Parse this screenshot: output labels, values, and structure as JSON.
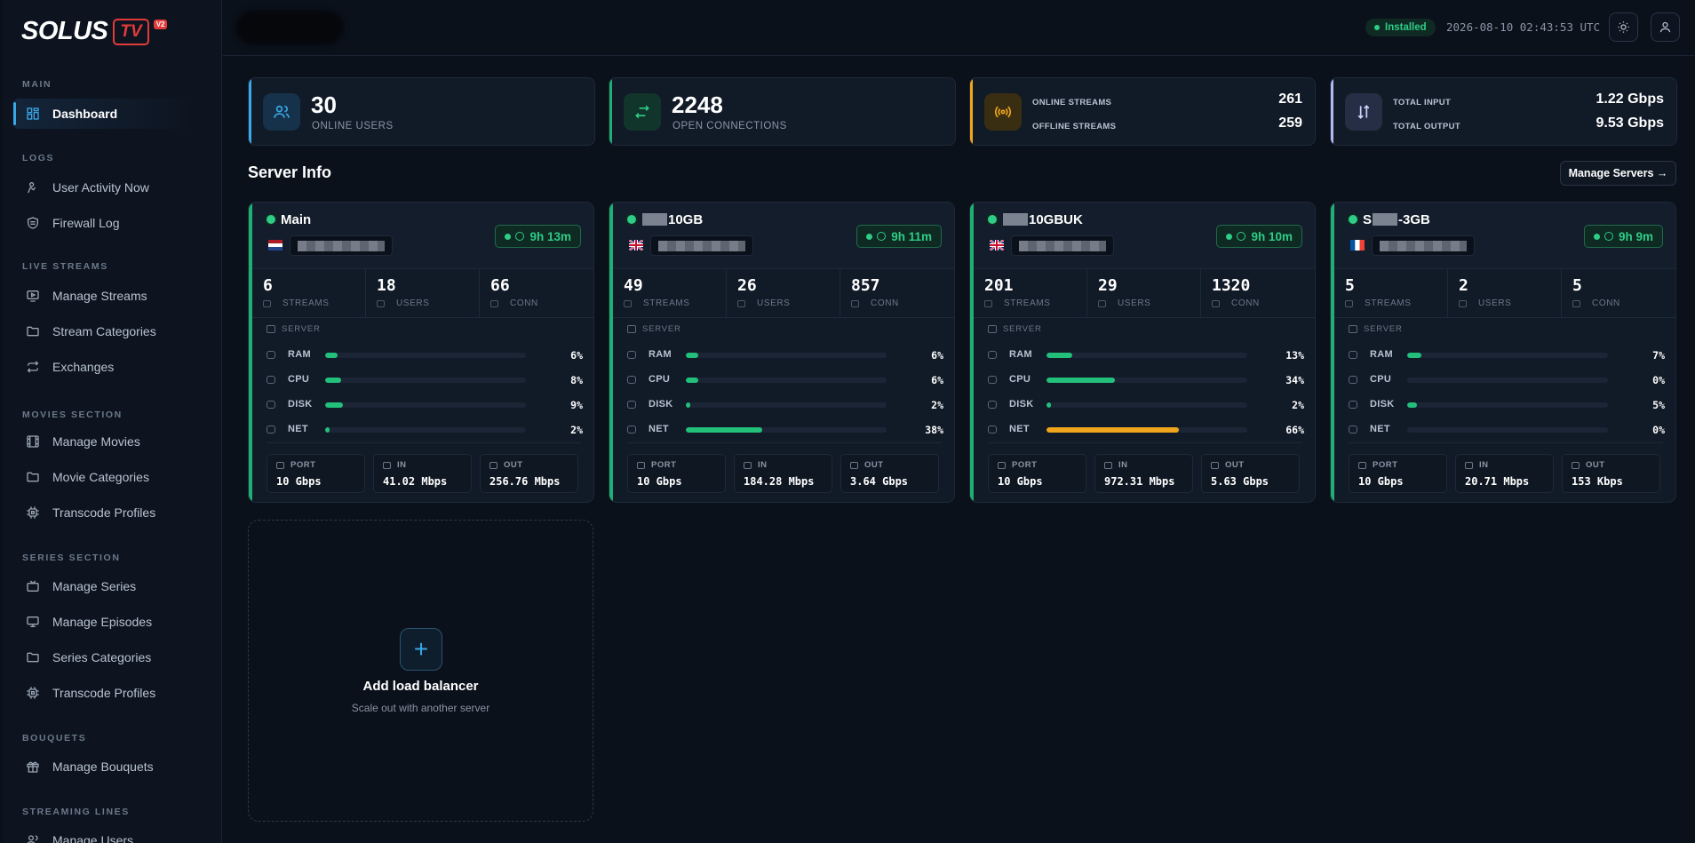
{
  "brand": {
    "name": "SOLUS",
    "tv": "TV",
    "version": "V2"
  },
  "colors": {
    "accent": "#3aa7e8",
    "success": "#2ecc87",
    "warning": "#f0a61c",
    "brand": "#e23b3b"
  },
  "sidebar": {
    "sections": [
      {
        "title": "MAIN",
        "items": [
          {
            "label": "Dashboard",
            "icon": "dashboard-icon",
            "active": true
          }
        ]
      },
      {
        "title": "LOGS",
        "items": [
          {
            "label": "User Activity Now",
            "icon": "user-activity-icon"
          },
          {
            "label": "Firewall Log",
            "icon": "shield-icon"
          }
        ]
      },
      {
        "title": "LIVE STREAMS",
        "items": [
          {
            "label": "Manage Streams",
            "icon": "play-screen-icon"
          },
          {
            "label": "Stream Categories",
            "icon": "folder-icon"
          },
          {
            "label": "Exchanges",
            "icon": "exchange-icon"
          }
        ]
      },
      {
        "title": "MOVIES SECTION",
        "items": [
          {
            "label": "Manage Movies",
            "icon": "film-icon"
          },
          {
            "label": "Movie Categories",
            "icon": "folder-icon"
          },
          {
            "label": "Transcode Profiles",
            "icon": "cpu-icon"
          }
        ]
      },
      {
        "title": "SERIES SECTION",
        "items": [
          {
            "label": "Manage Series",
            "icon": "tv-icon"
          },
          {
            "label": "Manage Episodes",
            "icon": "monitor-icon"
          },
          {
            "label": "Series Categories",
            "icon": "folder-icon"
          },
          {
            "label": "Transcode Profiles",
            "icon": "cpu-icon"
          }
        ]
      },
      {
        "title": "BOUQUETS",
        "items": [
          {
            "label": "Manage Bouquets",
            "icon": "gift-icon"
          }
        ]
      },
      {
        "title": "STREAMING LINES",
        "items": [
          {
            "label": "Manage Users",
            "icon": "users-icon"
          }
        ]
      }
    ]
  },
  "topbar": {
    "status": "Installed",
    "datetime": "2026-08-10 02:43:53 UTC",
    "theme_icon": "sun-icon",
    "user_icon": "user-icon"
  },
  "stats": {
    "online_users": {
      "value": "30",
      "label": "ONLINE USERS"
    },
    "open_connections": {
      "value": "2248",
      "label": "OPEN CONNECTIONS"
    },
    "streams": {
      "online_label": "ONLINE STREAMS",
      "online_value": "261",
      "offline_label": "OFFLINE STREAMS",
      "offline_value": "259"
    },
    "bandwidth": {
      "input_label": "TOTAL INPUT",
      "input_value": "1.22 Gbps",
      "output_label": "TOTAL OUTPUT",
      "output_value": "9.53 Gbps"
    }
  },
  "server_info": {
    "title": "Server Info",
    "manage_label": "Manage Servers →"
  },
  "labels": {
    "streams": "STREAMS",
    "users": "USERS",
    "conn": "CONN",
    "server": "SERVER",
    "ram": "RAM",
    "cpu": "CPU",
    "disk": "DISK",
    "net": "NET",
    "port": "PORT",
    "in": "IN",
    "out": "OUT"
  },
  "servers": [
    {
      "name_pre": "",
      "name_post": "Main",
      "masked": false,
      "flag": "nl",
      "uptime": "9h 13m",
      "streams": "6",
      "users": "18",
      "conn": "66",
      "ram": 6,
      "cpu": 8,
      "disk": 9,
      "net": 2,
      "ram_t": "6%",
      "cpu_t": "8%",
      "disk_t": "9%",
      "net_t": "2%",
      "port": "10 Gbps",
      "in": "41.02 Mbps",
      "out": "256.76 Mbps"
    },
    {
      "name_pre": "",
      "name_post": "10GB",
      "masked": true,
      "flag": "uk",
      "uptime": "9h 11m",
      "streams": "49",
      "users": "26",
      "conn": "857",
      "ram": 6,
      "cpu": 6,
      "disk": 2,
      "net": 38,
      "ram_t": "6%",
      "cpu_t": "6%",
      "disk_t": "2%",
      "net_t": "38%",
      "port": "10 Gbps",
      "in": "184.28 Mbps",
      "out": "3.64 Gbps"
    },
    {
      "name_pre": "",
      "name_post": "10GBUK",
      "masked": true,
      "flag": "uk",
      "uptime": "9h 10m",
      "streams": "201",
      "users": "29",
      "conn": "1320",
      "ram": 13,
      "cpu": 34,
      "disk": 2,
      "net": 66,
      "ram_t": "13%",
      "cpu_t": "34%",
      "disk_t": "2%",
      "net_t": "66%",
      "port": "10 Gbps",
      "in": "972.31 Mbps",
      "out": "5.63 Gbps"
    },
    {
      "name_pre": "S",
      "name_post": "-3GB",
      "masked": true,
      "flag": "fr",
      "uptime": "9h 9m",
      "streams": "5",
      "users": "2",
      "conn": "5",
      "ram": 7,
      "cpu": 0,
      "disk": 5,
      "net": 0,
      "ram_t": "7%",
      "cpu_t": "0%",
      "disk_t": "5%",
      "net_t": "0%",
      "port": "10 Gbps",
      "in": "20.71 Mbps",
      "out": "153 Kbps"
    }
  ],
  "add_lb": {
    "title": "Add load balancer",
    "subtitle": "Scale out with another server"
  }
}
